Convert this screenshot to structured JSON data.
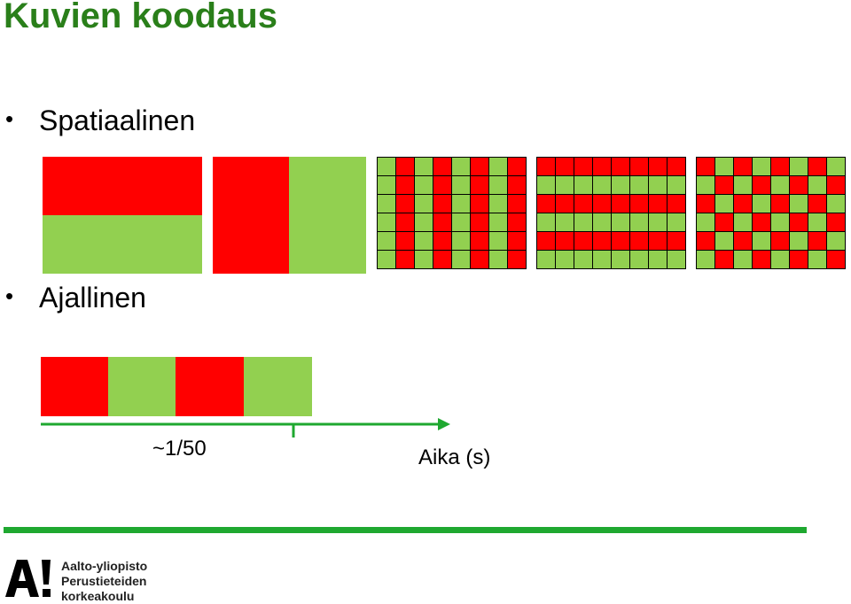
{
  "title": "Kuvien koodaus",
  "bullets": {
    "spatial": "Spatiaalinen",
    "temporal": "Ajallinen",
    "marker": "•"
  },
  "timeline": {
    "tick_label": "~1/50",
    "axis_label": "Aika (s)"
  },
  "colors": {
    "red": "#ff0000",
    "green": "#92d050",
    "title": "#2a7f1a",
    "footer": "#1fa830"
  },
  "logo": {
    "mark": "A!",
    "line1": "Aalto-yliopisto",
    "line2": "Perustieteiden",
    "line3": "korkeakoulu"
  },
  "patterns": [
    {
      "name": "vertical-stripes"
    },
    {
      "name": "horizontal-stripes"
    },
    {
      "name": "checkerboard"
    }
  ]
}
